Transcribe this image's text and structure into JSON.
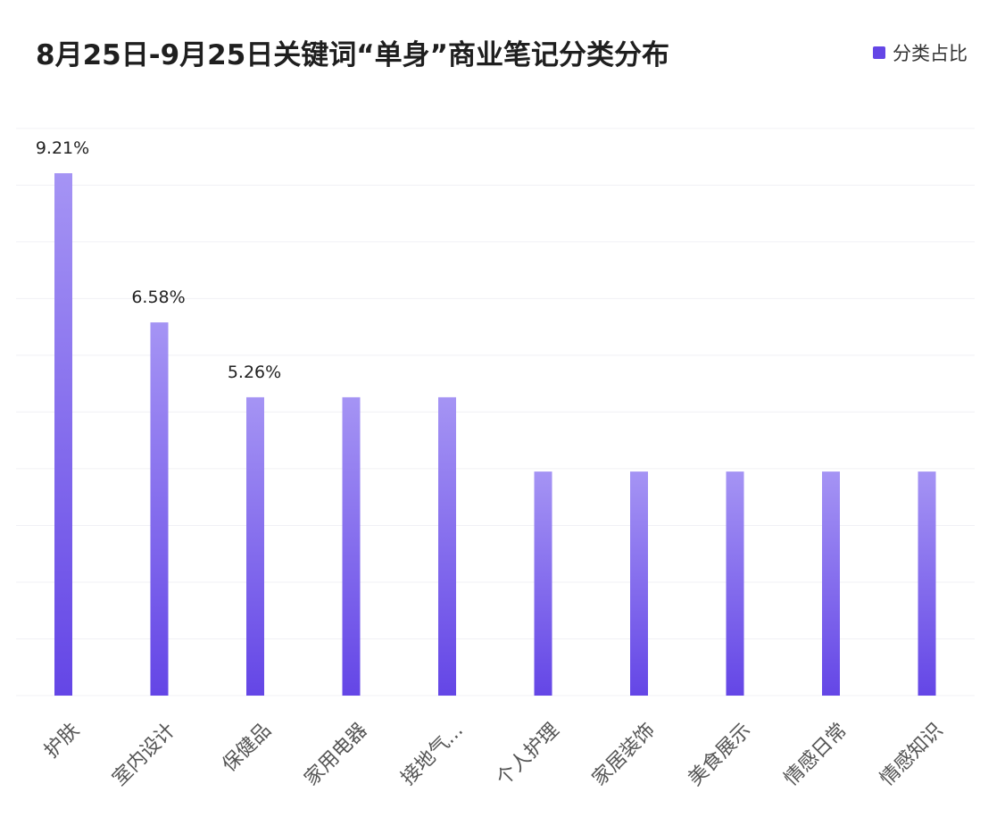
{
  "chart_data": {
    "type": "bar",
    "title": "8月25日-9月25日关键词“单身”商业笔记分类分布",
    "legend": {
      "position": "top-right",
      "entries": [
        "分类占比"
      ]
    },
    "categories": [
      "护肤",
      "室内设计",
      "保健品",
      "家用电器",
      "接地气...",
      "个人护理",
      "家居装饰",
      "美食展示",
      "情感日常",
      "情感知识"
    ],
    "series": [
      {
        "name": "分类占比",
        "values": [
          9.21,
          6.58,
          5.26,
          5.26,
          5.26,
          3.95,
          3.95,
          3.95,
          3.95,
          3.95
        ],
        "data_labels": [
          "9.21%",
          "6.58%",
          "5.26%",
          null,
          null,
          null,
          null,
          null,
          null,
          null
        ]
      }
    ],
    "y_axis": {
      "visible": false,
      "ylim": [
        0,
        10
      ]
    },
    "grid": true,
    "colors": {
      "bar_top": "#a594f4",
      "bar_bottom": "#6446e6",
      "grid": "#f0f0f5",
      "tick_text": "#555555"
    }
  }
}
